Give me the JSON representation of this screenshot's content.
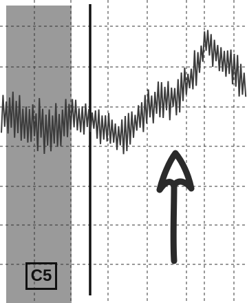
{
  "chart_data": {
    "type": "line",
    "panel_label": "C5",
    "grid": true,
    "grid_style": "dashed",
    "highlight_region_color": "#9a9a9a",
    "trace_color": "#3c3c3c",
    "marker_line_color": "#111111",
    "arrow_color": "#2a2a2a",
    "title": "",
    "xlabel": "",
    "ylabel": ""
  }
}
